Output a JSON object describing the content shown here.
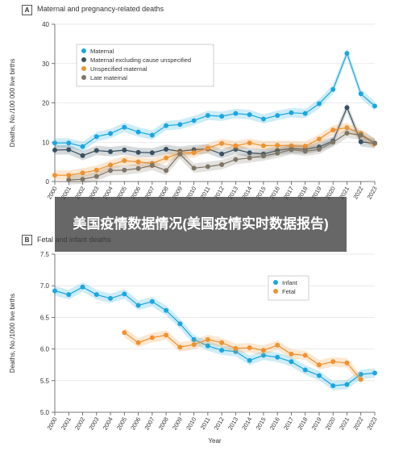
{
  "overlay": {
    "text": "美国疫情数据情况(美国疫情实时数据报告)"
  },
  "chart_data": [
    {
      "panel_label": "A",
      "type": "line",
      "title": "Maternal and pregnancy-related deaths",
      "ylabel": "Deaths, No./100 000 live births",
      "xlabel": "",
      "ylim": [
        0,
        40
      ],
      "yticks": [
        0,
        10,
        20,
        30,
        40
      ],
      "x": [
        "2000",
        "2001",
        "2002",
        "2003",
        "2004",
        "2005",
        "2006",
        "2007",
        "2008",
        "2009",
        "2010",
        "2011",
        "2012",
        "2013",
        "2014",
        "2015",
        "2016",
        "2017",
        "2018",
        "2019",
        "2020",
        "2021",
        "2022",
        "2023"
      ],
      "legend_position": "top-left",
      "grid": true,
      "series": [
        {
          "name": "Maternal",
          "color": "#1aa7e0",
          "band": true,
          "values": [
            9.8,
            9.8,
            8.9,
            11.4,
            12.2,
            13.8,
            12.6,
            11.8,
            14.2,
            14.5,
            15.5,
            16.8,
            16.6,
            17.3,
            17.0,
            15.9,
            16.8,
            17.5,
            17.3,
            19.8,
            23.4,
            32.6,
            22.3,
            19.2
          ]
        },
        {
          "name": "Maternal excluding cause unspecified",
          "color": "#3a5060",
          "band": true,
          "values": [
            8.0,
            8.1,
            6.6,
            7.9,
            7.6,
            8.0,
            7.4,
            7.3,
            8.2,
            7.7,
            8.1,
            8.3,
            7.0,
            8.2,
            7.3,
            7.0,
            7.9,
            8.4,
            8.2,
            8.8,
            10.3,
            18.8,
            10.1,
            9.7
          ]
        },
        {
          "name": "Unspecified maternal",
          "color": "#f0922f",
          "band": true,
          "values": [
            1.6,
            1.6,
            2.2,
            2.9,
            4.2,
            5.3,
            5.0,
            4.6,
            6.0,
            7.2,
            7.3,
            8.5,
            9.7,
            9.1,
            9.8,
            9.1,
            9.2,
            9.1,
            9.0,
            10.8,
            13.1,
            13.7,
            12.2,
            9.6
          ]
        },
        {
          "name": "Late maternal",
          "color": "#7e7565",
          "band": true,
          "values": [
            null,
            0.4,
            0.6,
            1.3,
            2.8,
            2.9,
            3.3,
            4.1,
            2.8,
            7.0,
            3.4,
            3.8,
            4.3,
            5.6,
            6.0,
            6.5,
            7.2,
            8.1,
            7.7,
            8.2,
            10.0,
            12.3,
            11.8,
            9.8
          ]
        }
      ]
    },
    {
      "panel_label": "B",
      "type": "line",
      "title": "Fetal and infant deaths",
      "ylabel": "Deaths, No./1000 live births",
      "xlabel": "Year",
      "ylim": [
        5,
        7.5
      ],
      "yticks": [
        5,
        5.5,
        6.0,
        6.5,
        7.0,
        7.5
      ],
      "x": [
        "2000",
        "2001",
        "2002",
        "2003",
        "2004",
        "2005",
        "2006",
        "2007",
        "2008",
        "2009",
        "2010",
        "2011",
        "2012",
        "2013",
        "2014",
        "2015",
        "2016",
        "2017",
        "2018",
        "2019",
        "2020",
        "2021",
        "2022",
        "2023"
      ],
      "legend_position": "top-right",
      "grid": true,
      "series": [
        {
          "name": "Infant",
          "color": "#1aa7e0",
          "band": true,
          "values": [
            6.92,
            6.86,
            6.98,
            6.86,
            6.8,
            6.87,
            6.69,
            6.75,
            6.61,
            6.4,
            6.15,
            6.05,
            5.98,
            5.96,
            5.82,
            5.9,
            5.87,
            5.8,
            5.67,
            5.58,
            5.42,
            5.44,
            5.6,
            5.62
          ]
        },
        {
          "name": "Fetal",
          "color": "#f0922f",
          "band": true,
          "values": [
            null,
            null,
            null,
            null,
            null,
            6.26,
            6.1,
            6.18,
            6.22,
            6.03,
            6.07,
            6.15,
            6.1,
            6.01,
            6.02,
            5.98,
            6.06,
            5.92,
            5.9,
            5.75,
            5.8,
            5.78,
            5.52,
            null
          ]
        }
      ]
    }
  ]
}
